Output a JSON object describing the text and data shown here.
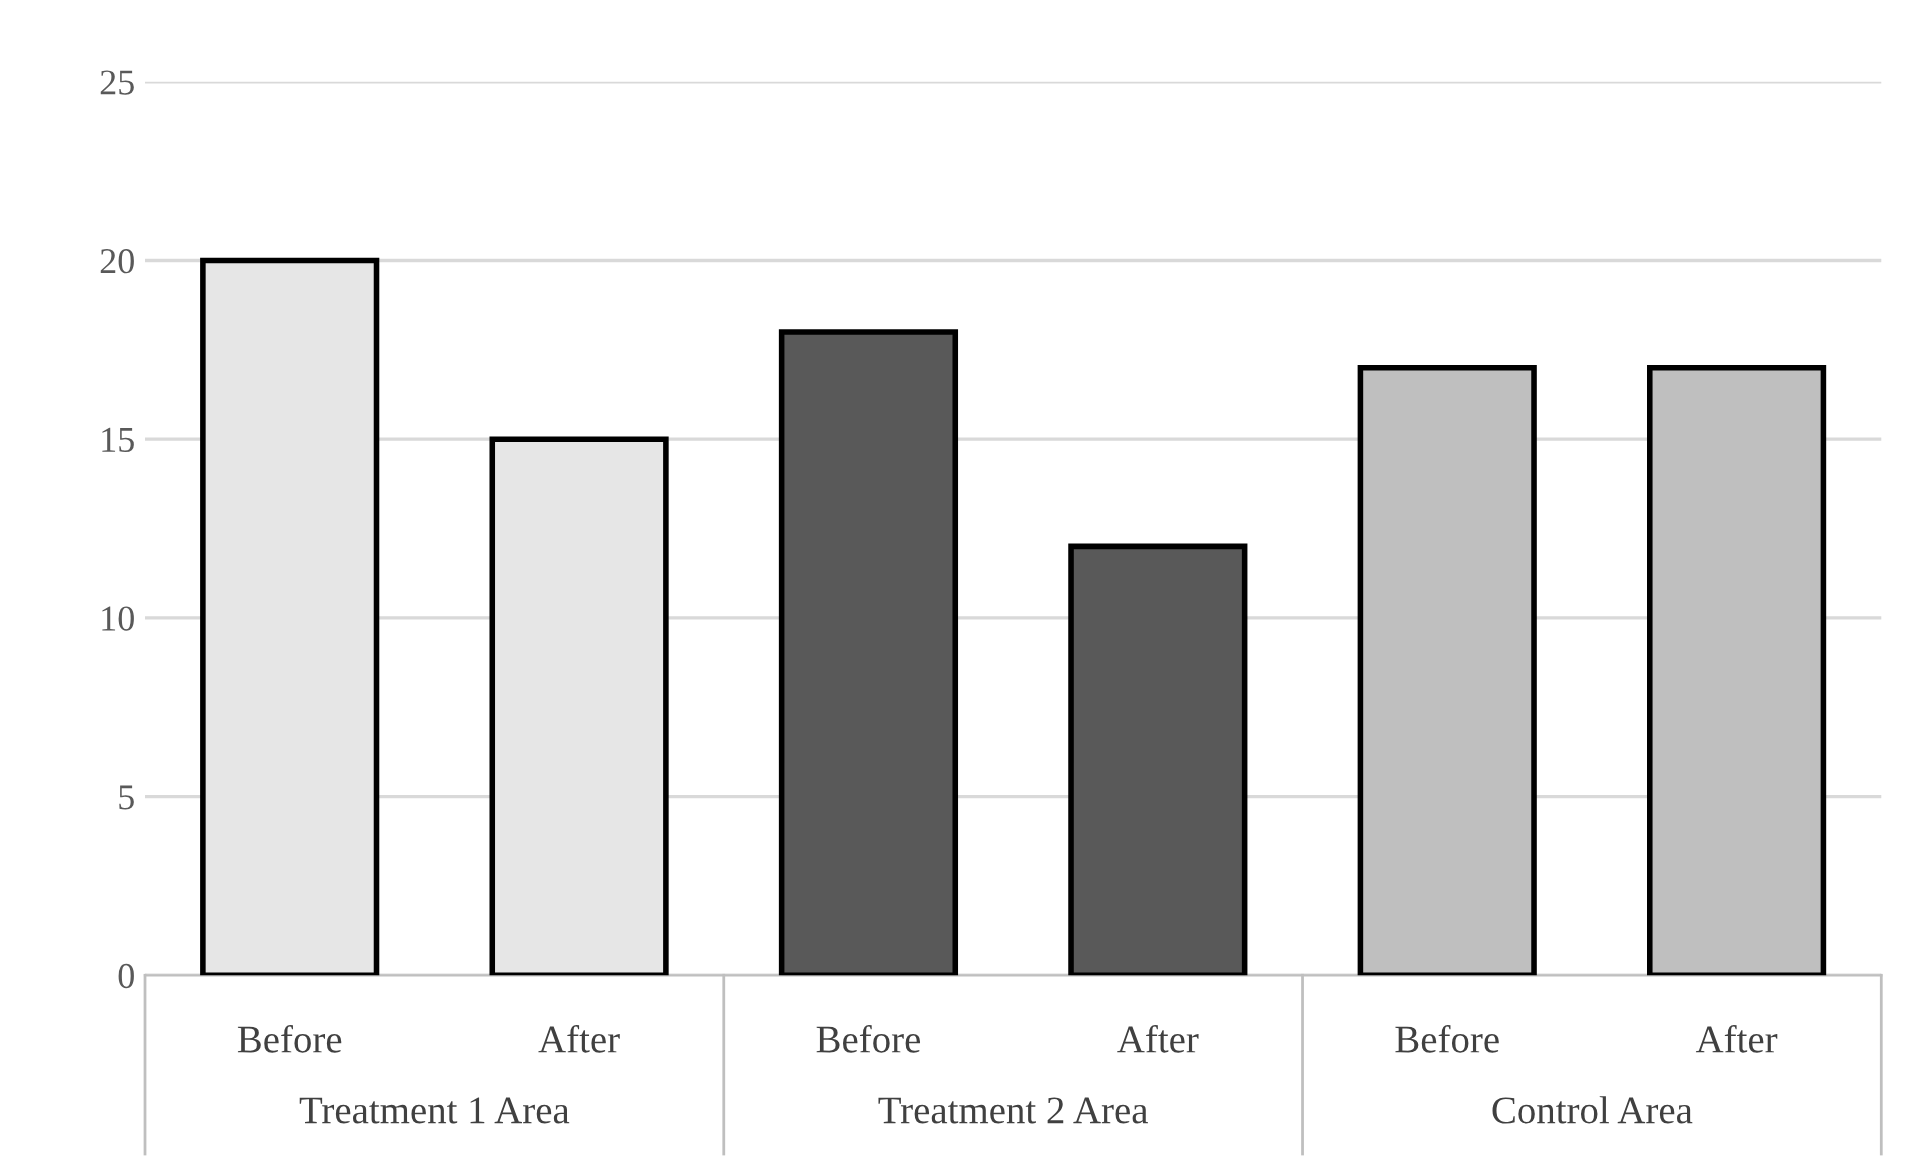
{
  "chart_data": {
    "type": "bar",
    "categories": [
      "Before",
      "After",
      "Before",
      "After",
      "Before",
      "After"
    ],
    "series": [
      {
        "color": "#e6e6e6",
        "values": [
          20,
          15,
          null,
          null,
          null,
          null
        ]
      },
      {
        "color": "#595959",
        "values": [
          null,
          null,
          18,
          12,
          null,
          null
        ]
      },
      {
        "color": "#bfbfbf",
        "values": [
          null,
          null,
          null,
          null,
          17,
          17
        ]
      }
    ],
    "annotations": [
      "Treatment 1 Area",
      "Treatment 2 Area",
      "Control Area"
    ],
    "ylim": [
      0,
      25
    ],
    "yticks": [
      0,
      5,
      10,
      15,
      20,
      25
    ],
    "grid": "y",
    "legend": false
  }
}
